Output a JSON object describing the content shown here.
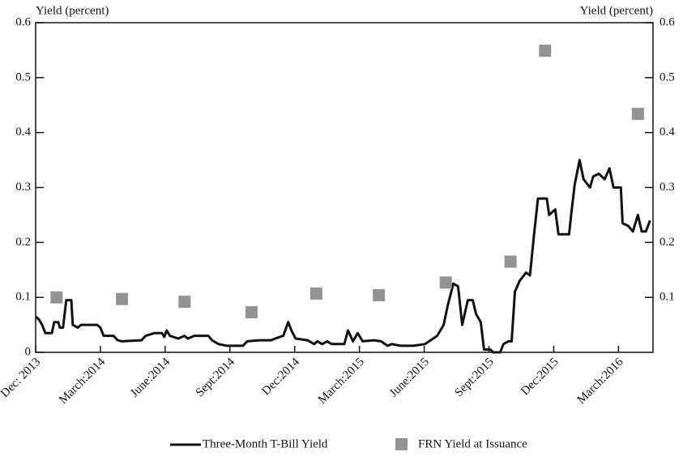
{
  "chart_data": {
    "type": "line",
    "ylabel": "Yield (percent)",
    "y2label": "Yield (percent)",
    "ylim": [
      0,
      0.6
    ],
    "yticks": [
      0,
      0.1,
      0.2,
      0.3,
      0.4,
      0.5,
      0.6
    ],
    "y2lim": [
      0,
      0.6
    ],
    "y2ticks": [
      0.1,
      0.2,
      0.3,
      0.4,
      0.5,
      0.6
    ],
    "xlim": [
      0,
      28.6
    ],
    "xticks": [
      {
        "value": 0,
        "label": "Dec: 2013"
      },
      {
        "value": 3,
        "label": "March:2014"
      },
      {
        "value": 6,
        "label": "June:2014"
      },
      {
        "value": 9,
        "label": "Sept:2014"
      },
      {
        "value": 12,
        "label": "Dec:2014"
      },
      {
        "value": 15,
        "label": "March:2015"
      },
      {
        "value": 18,
        "label": "June:2015"
      },
      {
        "value": 21,
        "label": "Sept:2015"
      },
      {
        "value": 24,
        "label": "Dec:2015"
      },
      {
        "value": 27,
        "label": "March:2016"
      }
    ],
    "series": [
      {
        "name": "Three-Month T-Bill Yield",
        "type": "line",
        "color": "#111111",
        "x": [
          0,
          0.15,
          0.3,
          0.45,
          0.75,
          0.86,
          1.05,
          1.12,
          1.27,
          1.42,
          1.65,
          1.72,
          1.95,
          2.1,
          2.85,
          3.0,
          3.15,
          3.6,
          3.8,
          4.0,
          4.9,
          5.1,
          5.5,
          5.85,
          5.96,
          6.07,
          6.22,
          6.6,
          6.9,
          7.05,
          7.35,
          8.0,
          8.17,
          8.47,
          8.85,
          9.6,
          9.8,
          10.35,
          10.9,
          11.1,
          11.47,
          11.7,
          11.85,
          12.04,
          12.6,
          12.9,
          13.05,
          13.27,
          13.5,
          13.72,
          14.3,
          14.47,
          14.7,
          14.92,
          15.15,
          15.67,
          16.0,
          16.3,
          16.5,
          16.9,
          17.5,
          18.04,
          18.6,
          18.9,
          19.09,
          19.35,
          19.57,
          19.76,
          20.02,
          20.25,
          20.4,
          20.62,
          20.77,
          21.07,
          21.19,
          21.52,
          21.67,
          21.9,
          22.05,
          22.2,
          22.42,
          22.72,
          22.9,
          23.09,
          23.27,
          23.68,
          23.79,
          24.07,
          24.22,
          24.71,
          24.82,
          24.97,
          25.2,
          25.38,
          25.68,
          25.83,
          26.09,
          26.36,
          26.58,
          26.77,
          27.11,
          27.19,
          27.45,
          27.67,
          27.9,
          28.08,
          28.27,
          28.46
        ],
        "values": [
          0.065,
          0.06,
          0.05,
          0.035,
          0.035,
          0.055,
          0.055,
          0.045,
          0.045,
          0.095,
          0.095,
          0.05,
          0.045,
          0.05,
          0.05,
          0.045,
          0.03,
          0.03,
          0.022,
          0.02,
          0.022,
          0.03,
          0.035,
          0.035,
          0.028,
          0.04,
          0.03,
          0.025,
          0.03,
          0.025,
          0.03,
          0.03,
          0.022,
          0.015,
          0.012,
          0.012,
          0.02,
          0.022,
          0.022,
          0.025,
          0.03,
          0.055,
          0.04,
          0.025,
          0.022,
          0.015,
          0.02,
          0.015,
          0.02,
          0.015,
          0.015,
          0.04,
          0.02,
          0.035,
          0.02,
          0.022,
          0.02,
          0.012,
          0.015,
          0.012,
          0.012,
          0.015,
          0.03,
          0.05,
          0.085,
          0.125,
          0.12,
          0.05,
          0.095,
          0.095,
          0.07,
          0.055,
          0.005,
          0.005,
          0,
          0,
          0.015,
          0.02,
          0.02,
          0.11,
          0.13,
          0.145,
          0.14,
          0.215,
          0.28,
          0.28,
          0.25,
          0.26,
          0.215,
          0.215,
          0.255,
          0.305,
          0.35,
          0.315,
          0.3,
          0.32,
          0.325,
          0.315,
          0.335,
          0.3,
          0.3,
          0.235,
          0.23,
          0.22,
          0.25,
          0.22,
          0.22,
          0.24
        ]
      },
      {
        "name": "FRN Yield at Issuance",
        "type": "scatter",
        "color": "#939393",
        "x": [
          0.97,
          4.0,
          6.9,
          10.0,
          13.0,
          15.9,
          19.0,
          22.0,
          23.6,
          27.9
        ],
        "values": [
          0.1,
          0.097,
          0.092,
          0.073,
          0.107,
          0.104,
          0.127,
          0.165,
          0.549,
          0.434
        ]
      }
    ]
  }
}
